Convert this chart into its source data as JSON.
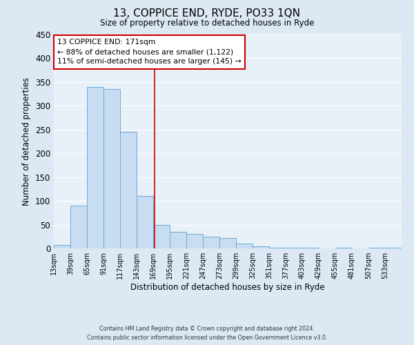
{
  "title": "13, COPPICE END, RYDE, PO33 1QN",
  "subtitle": "Size of property relative to detached houses in Ryde",
  "xlabel": "Distribution of detached houses by size in Ryde",
  "ylabel": "Number of detached properties",
  "bin_edges": [
    13,
    39,
    65,
    91,
    117,
    143,
    169,
    195,
    221,
    247,
    273,
    299,
    325,
    351,
    377,
    403,
    429,
    455,
    481,
    507,
    533,
    559
  ],
  "bar_values": [
    7,
    90,
    340,
    335,
    245,
    110,
    50,
    35,
    30,
    25,
    22,
    10,
    5,
    1,
    1,
    1,
    0,
    1,
    0,
    1,
    1
  ],
  "bar_color": "#c9ddf2",
  "bar_edge_color": "#6aaad4",
  "vline_x": 171,
  "vline_color": "#cc0000",
  "ylim": [
    0,
    450
  ],
  "yticks": [
    0,
    50,
    100,
    150,
    200,
    250,
    300,
    350,
    400,
    450
  ],
  "xtick_labels": [
    "13sqm",
    "39sqm",
    "65sqm",
    "91sqm",
    "117sqm",
    "143sqm",
    "169sqm",
    "195sqm",
    "221sqm",
    "247sqm",
    "273sqm",
    "299sqm",
    "325sqm",
    "351sqm",
    "377sqm",
    "403sqm",
    "429sqm",
    "455sqm",
    "481sqm",
    "507sqm",
    "533sqm"
  ],
  "annotation_title": "13 COPPICE END: 171sqm",
  "annotation_line1": "← 88% of detached houses are smaller (1,122)",
  "annotation_line2": "11% of semi-detached houses are larger (145) →",
  "annotation_box_color": "#ffffff",
  "annotation_border_color": "#cc0000",
  "footer1": "Contains HM Land Registry data © Crown copyright and database right 2024.",
  "footer2": "Contains public sector information licensed under the Open Government Licence v3.0.",
  "background_color": "#dce9f5",
  "plot_background_color": "#e8f0f8",
  "grid_color": "#ffffff"
}
